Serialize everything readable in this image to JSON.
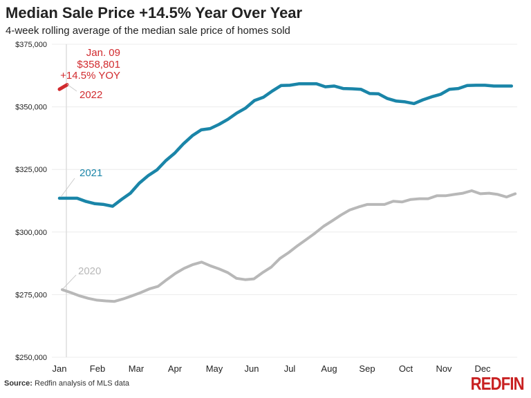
{
  "title": "Median Sale Price +14.5% Year Over Year",
  "subtitle": "4-week rolling average of the median sale price of homes sold",
  "source_label": "Source:",
  "source_text": "Redfin analysis of MLS data",
  "logo": "REDFIN",
  "chart_data": {
    "type": "line",
    "title": "Median Sale Price +14.5% Year Over Year",
    "subtitle": "4-week rolling average of the median sale price of homes sold",
    "x_tick_labels": [
      "Jan",
      "Feb",
      "Mar",
      "Apr",
      "May",
      "Jun",
      "Jul",
      "Aug",
      "Sep",
      "Oct",
      "Nov",
      "Dec"
    ],
    "y_tick_labels": [
      "$250,000",
      "$275,000",
      "$300,000",
      "$325,000",
      "$350,000",
      "$375,000"
    ],
    "y_ticks": [
      250000,
      275000,
      300000,
      325000,
      350000,
      375000
    ],
    "ylim": [
      250000,
      375000
    ],
    "grid": "horizontal",
    "series": [
      {
        "name": "2020",
        "color": "#b8b8b8",
        "values": [
          277000,
          275800,
          274500,
          273500,
          272800,
          272500,
          272300,
          273300,
          274500,
          275800,
          277300,
          278300,
          281000,
          283500,
          285500,
          287000,
          288000,
          286500,
          285300,
          283800,
          281500,
          281000,
          281300,
          283800,
          286000,
          289500,
          291800,
          294500,
          297000,
          299500,
          302300,
          304500,
          306800,
          308800,
          310000,
          311000,
          311000,
          311000,
          312300,
          312000,
          313000,
          313300,
          313300,
          314500,
          314500,
          315000,
          315500,
          316500,
          315300,
          315500,
          315000,
          314000,
          315300
        ]
      },
      {
        "name": "2021",
        "color": "#1a85a8",
        "values": [
          313500,
          313500,
          313500,
          312200,
          311300,
          311000,
          310300,
          313000,
          315500,
          319500,
          322500,
          324800,
          328500,
          331500,
          335300,
          338500,
          340800,
          341300,
          343000,
          345000,
          347500,
          349500,
          352500,
          353800,
          356300,
          358500,
          358600,
          359200,
          359200,
          359200,
          358000,
          358300,
          357300,
          357200,
          357000,
          355300,
          355200,
          353300,
          352300,
          352000,
          351300,
          352800,
          354000,
          355000,
          357000,
          357300,
          358500,
          358600,
          358600,
          358300,
          358300,
          358300
        ]
      },
      {
        "name": "2022",
        "color": "#d12a2e",
        "values": [
          357000,
          358801
        ]
      }
    ],
    "annotation": {
      "date": "Jan. 09",
      "value": "$358,801",
      "change": "+14.5% YOY"
    }
  }
}
